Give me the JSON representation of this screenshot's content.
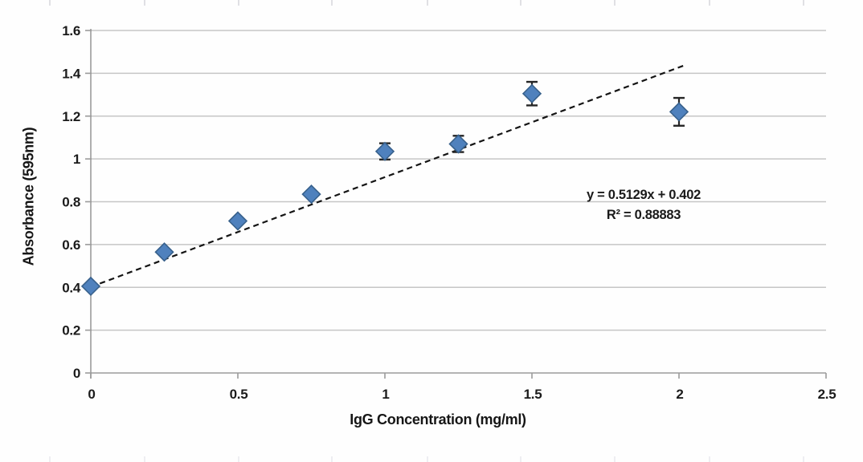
{
  "chart_data": {
    "type": "scatter",
    "title": "",
    "xlabel": "IgG Concentration (mg/ml)",
    "ylabel": "Absorbance (595nm)",
    "x": [
      0,
      0.25,
      0.5,
      0.75,
      1,
      1.25,
      1.5,
      2
    ],
    "y": [
      0.405,
      0.565,
      0.71,
      0.835,
      1.035,
      1.07,
      1.305,
      1.22
    ],
    "y_err": [
      null,
      null,
      null,
      null,
      0.038,
      0.038,
      0.055,
      0.065
    ],
    "xlim": [
      0,
      2.5
    ],
    "ylim": [
      0,
      1.6
    ],
    "x_ticks": [
      {
        "v": 0,
        "label": "0"
      },
      {
        "v": 0.5,
        "label": "0.5"
      },
      {
        "v": 1,
        "label": "1"
      },
      {
        "v": 1.5,
        "label": "1.5"
      },
      {
        "v": 2,
        "label": "2"
      },
      {
        "v": 2.5,
        "label": "2.5"
      }
    ],
    "y_ticks": [
      {
        "v": 0,
        "label": "0"
      },
      {
        "v": 0.2,
        "label": "0.2"
      },
      {
        "v": 0.4,
        "label": "0.4"
      },
      {
        "v": 0.6,
        "label": "0.6"
      },
      {
        "v": 0.8,
        "label": "0.8"
      },
      {
        "v": 1,
        "label": "1"
      },
      {
        "v": 1.2,
        "label": "1.2"
      },
      {
        "v": 1.4,
        "label": "1.4"
      },
      {
        "v": 1.6,
        "label": "1.6"
      }
    ],
    "grid": "horizontal-only",
    "legend": "none",
    "marker": "diamond",
    "trendline": {
      "type": "linear",
      "style": "dashed",
      "slope": 0.5129,
      "intercept": 0.402,
      "x_start": 0,
      "x_end": 2.02
    },
    "annotation": {
      "line1": "y = 0.5129x + 0.402",
      "line2": "R² = 0.88883"
    },
    "colors": {
      "marker_fill": "#4F81BD",
      "marker_stroke": "#38618C",
      "trendline": "#141414",
      "gridline": "#c6c6c6",
      "axis": "#9b9b9b",
      "error_bar": "#262626",
      "text": "#1b1b1b",
      "background": "#fefefe"
    }
  },
  "artifacts": {
    "edge_tick_xs": [
      62,
      180,
      297,
      413,
      532,
      648,
      765,
      883,
      1000
    ]
  }
}
